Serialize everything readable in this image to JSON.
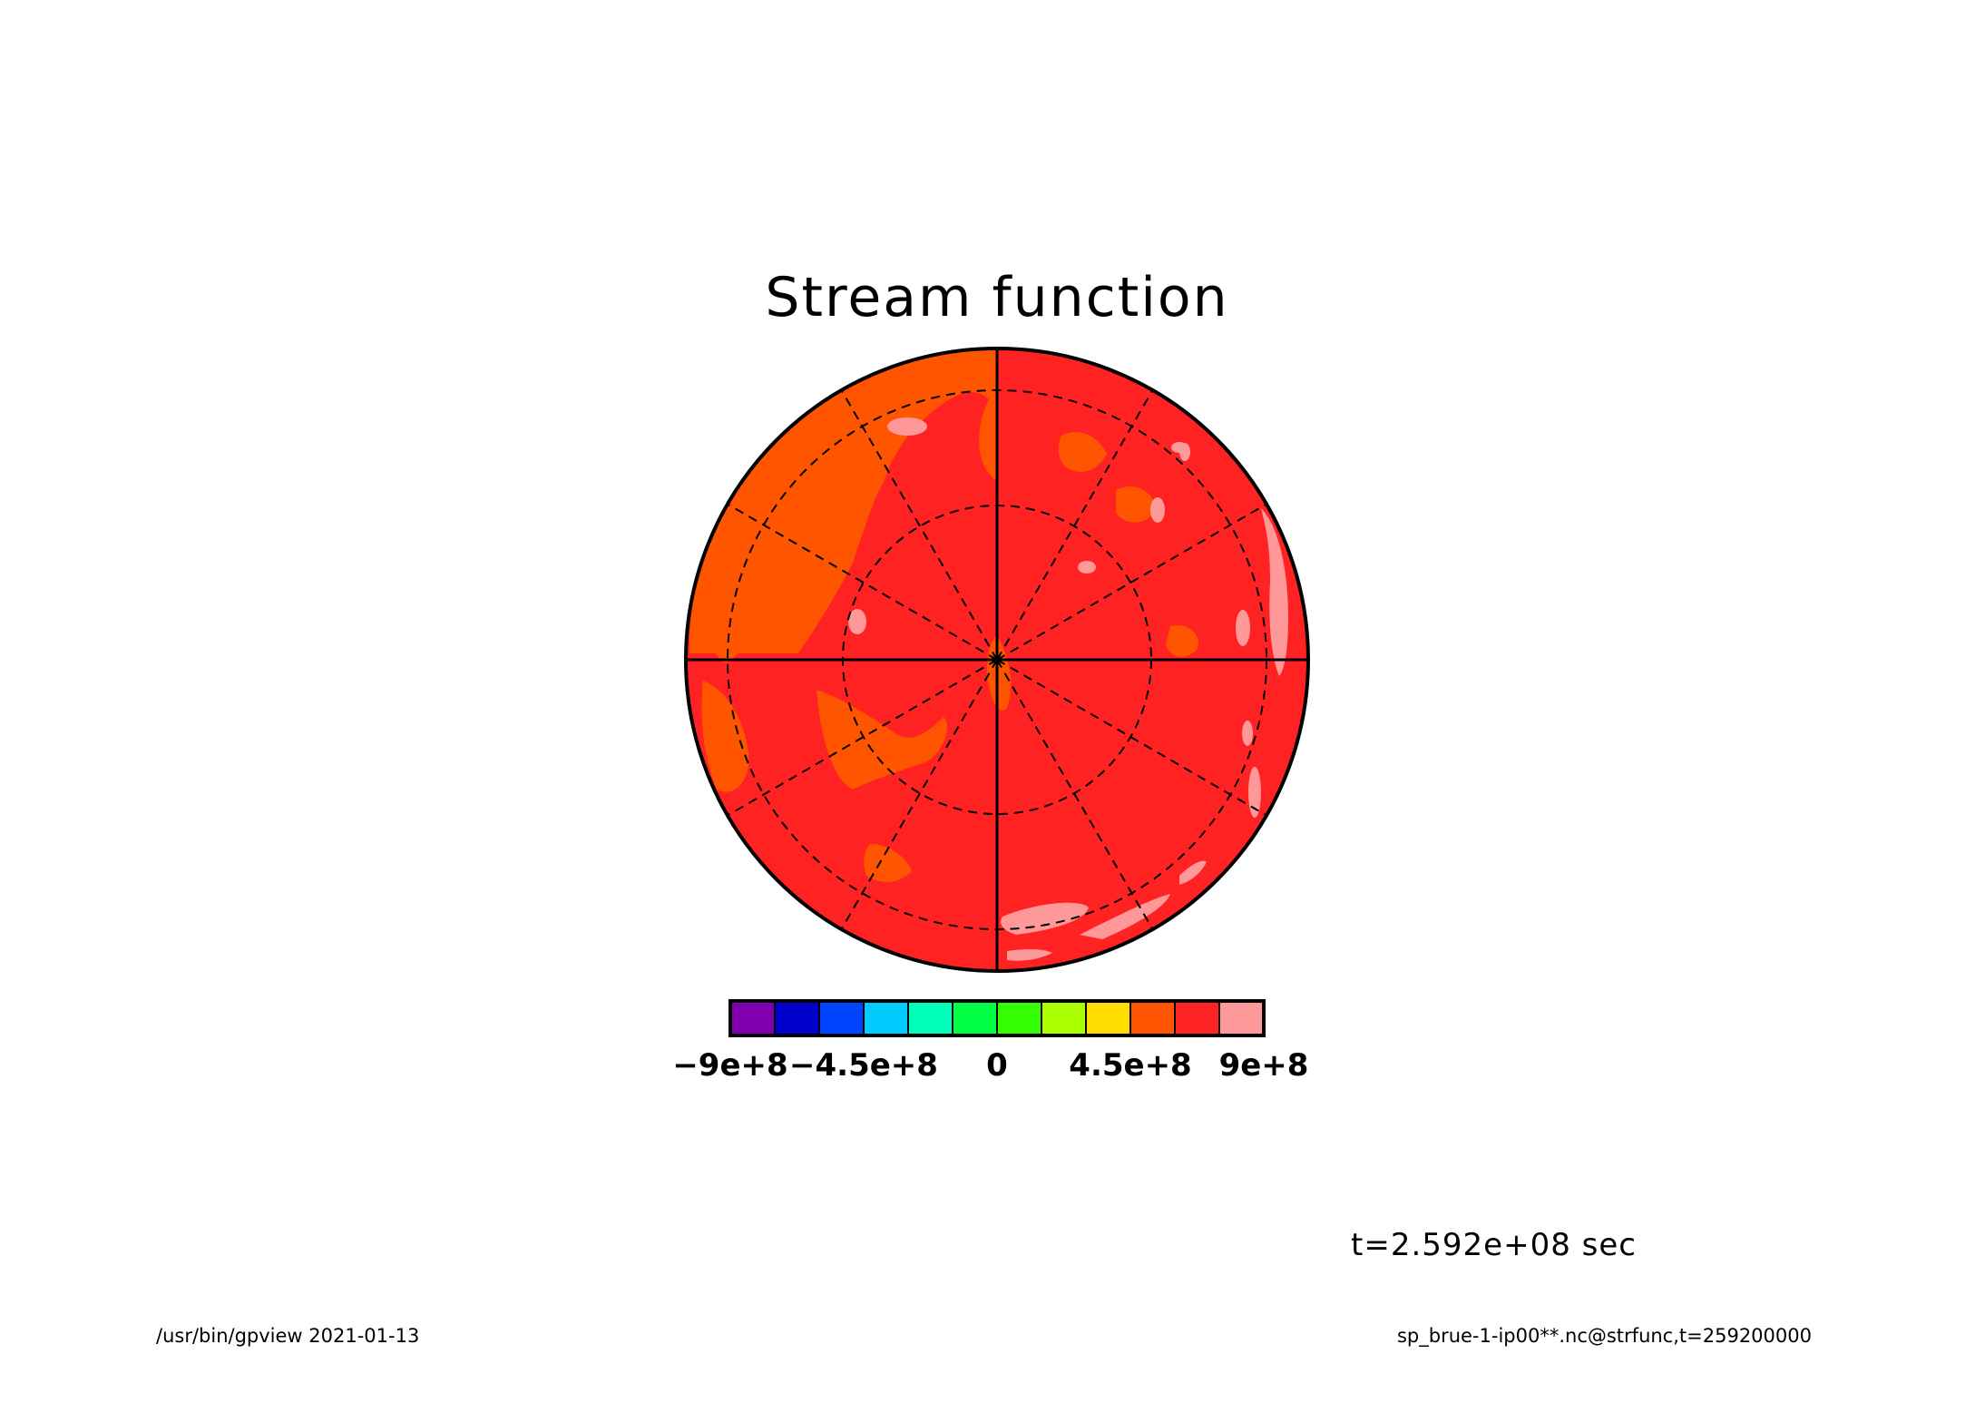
{
  "chart_data": {
    "type": "heatmap",
    "title": "Stream function",
    "projection": "polar",
    "grid": true,
    "legend_placement": "bottom",
    "colorbar": {
      "levels": [
        -900000000,
        -750000000,
        -600000000,
        -450000000,
        -300000000,
        -150000000,
        0,
        150000000,
        300000000,
        450000000,
        600000000,
        750000000,
        900000000
      ],
      "colors": [
        "#8000b0",
        "#0000cc",
        "#0044ff",
        "#00ccff",
        "#00ffbb",
        "#00ff44",
        "#33ff00",
        "#aaff00",
        "#ffdd00",
        "#ff5500",
        "#ff2222",
        "#ff9999"
      ],
      "tick_values": [
        -900000000,
        -450000000,
        0,
        450000000,
        900000000
      ],
      "tick_labels": [
        "−9e+8",
        "−4.5e+8",
        "0",
        "4.5e+8",
        "9e+8"
      ]
    },
    "dominant_fill": "#ff2222",
    "secondary_fill": "#ff5500",
    "highlight_fill": "#ff9999"
  },
  "time_label": "t=2.592e+08 sec",
  "footer": {
    "left": "/usr/bin/gpview   2021-01-13",
    "right": "sp_brue-1-ip00**.nc@strfunc,t=259200000"
  }
}
